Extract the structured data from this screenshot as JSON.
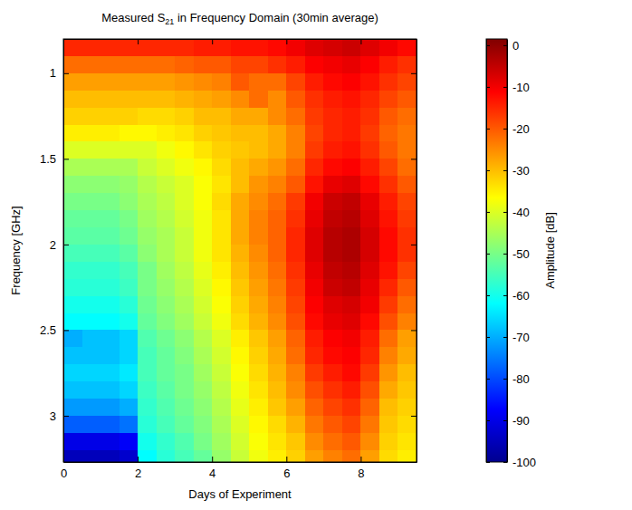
{
  "chart_data": {
    "type": "heatmap",
    "title": "Measured S21 in Frequency Domain (30min average)",
    "x_label": "Days of Experiment",
    "y_label": "Frequency [GHz]",
    "xlim": [
      0,
      9.5
    ],
    "ylim": [
      0.8,
      3.27
    ],
    "xticks": [
      0,
      2,
      4,
      6,
      8
    ],
    "yticks": [
      1,
      1.5,
      2,
      2.5,
      3
    ],
    "x_bins": [
      0,
      0.5,
      1,
      1.5,
      2,
      2.5,
      3,
      3.5,
      4,
      4.5,
      5,
      5.5,
      6,
      6.5,
      7,
      7.5,
      8,
      8.5,
      9,
      9.5
    ],
    "y_bins": [
      0.8,
      0.9,
      1.0,
      1.1,
      1.2,
      1.3,
      1.4,
      1.5,
      1.6,
      1.7,
      1.8,
      1.9,
      2.0,
      2.1,
      2.2,
      2.3,
      2.4,
      2.5,
      2.6,
      2.7,
      2.8,
      2.9,
      3.0,
      3.1,
      3.2,
      3.27
    ],
    "values": [
      [
        -15,
        -15,
        -15,
        -15,
        -15,
        -15,
        -15,
        -14,
        -14,
        -13,
        -13,
        -12,
        -10,
        -8,
        -7,
        -6,
        -8,
        -10,
        -12
      ],
      [
        -22,
        -22,
        -22,
        -22,
        -22,
        -22,
        -21,
        -20,
        -20,
        -18,
        -18,
        -16,
        -14,
        -11,
        -10,
        -9,
        -11,
        -14,
        -16
      ],
      [
        -27,
        -27,
        -27,
        -27,
        -27,
        -27,
        -26,
        -25,
        -24,
        -20,
        -22,
        -22,
        -18,
        -14,
        -12,
        -11,
        -13,
        -16,
        -18
      ],
      [
        -30,
        -30,
        -30,
        -30,
        -30,
        -30,
        -29,
        -28,
        -27,
        -25,
        -22,
        -25,
        -20,
        -16,
        -14,
        -13,
        -15,
        -18,
        -20
      ],
      [
        -32,
        -32,
        -32,
        -32,
        -33,
        -33,
        -32,
        -30,
        -30,
        -28,
        -28,
        -25,
        -22,
        -17,
        -15,
        -14,
        -16,
        -20,
        -22
      ],
      [
        -35,
        -35,
        -35,
        -36,
        -36,
        -35,
        -34,
        -32,
        -31,
        -30,
        -30,
        -28,
        -24,
        -18,
        -15,
        -14,
        -17,
        -21,
        -23
      ],
      [
        -40,
        -40,
        -40,
        -40,
        -40,
        -38,
        -36,
        -34,
        -32,
        -31,
        -30,
        -28,
        -24,
        -17,
        -14,
        -13,
        -16,
        -20,
        -23
      ],
      [
        -45,
        -45,
        -45,
        -45,
        -42,
        -40,
        -38,
        -36,
        -33,
        -30,
        -28,
        -26,
        -22,
        -15,
        -12,
        -11,
        -14,
        -18,
        -22
      ],
      [
        -48,
        -48,
        -48,
        -47,
        -44,
        -42,
        -40,
        -37,
        -34,
        -30,
        -26,
        -24,
        -20,
        -13,
        -9,
        -8,
        -12,
        -16,
        -20
      ],
      [
        -50,
        -50,
        -50,
        -48,
        -45,
        -43,
        -40,
        -37,
        -33,
        -28,
        -25,
        -22,
        -17,
        -10,
        -6,
        -5,
        -9,
        -14,
        -18
      ],
      [
        -52,
        -52,
        -52,
        -50,
        -46,
        -44,
        -41,
        -38,
        -34,
        -28,
        -24,
        -21,
        -16,
        -9,
        -5,
        -4,
        -8,
        -13,
        -17
      ],
      [
        -53,
        -53,
        -53,
        -51,
        -47,
        -45,
        -42,
        -38,
        -34,
        -28,
        -24,
        -21,
        -15,
        -8,
        -4,
        -3,
        -7,
        -12,
        -16
      ],
      [
        -55,
        -55,
        -55,
        -53,
        -48,
        -45,
        -42,
        -38,
        -34,
        -29,
        -25,
        -21,
        -15,
        -8,
        -4,
        -3,
        -7,
        -12,
        -16
      ],
      [
        -57,
        -57,
        -57,
        -55,
        -50,
        -46,
        -43,
        -39,
        -35,
        -30,
        -26,
        -22,
        -16,
        -9,
        -5,
        -4,
        -8,
        -13,
        -18
      ],
      [
        -58,
        -58,
        -58,
        -56,
        -50,
        -47,
        -44,
        -40,
        -36,
        -31,
        -27,
        -23,
        -17,
        -10,
        -6,
        -5,
        -9,
        -15,
        -20
      ],
      [
        -60,
        -60,
        -60,
        -58,
        -51,
        -48,
        -45,
        -41,
        -37,
        -32,
        -28,
        -24,
        -18,
        -11,
        -8,
        -7,
        -10,
        -17,
        -22
      ],
      [
        -62,
        -62,
        -62,
        -60,
        -52,
        -49,
        -46,
        -42,
        -38,
        -33,
        -29,
        -25,
        -19,
        -12,
        -9,
        -8,
        -12,
        -19,
        -24
      ],
      [
        -70,
        -68,
        -68,
        -66,
        -54,
        -51,
        -48,
        -44,
        -40,
        -35,
        -31,
        -27,
        -21,
        -14,
        -11,
        -10,
        -14,
        -22,
        -27
      ],
      [
        -68,
        -68,
        -68,
        -66,
        -55,
        -52,
        -49,
        -45,
        -41,
        -36,
        -32,
        -28,
        -22,
        -15,
        -12,
        -11,
        -15,
        -24,
        -28
      ],
      [
        -66,
        -66,
        -66,
        -64,
        -55,
        -52,
        -50,
        -46,
        -42,
        -37,
        -33,
        -29,
        -24,
        -17,
        -14,
        -12,
        -17,
        -26,
        -30
      ],
      [
        -68,
        -68,
        -68,
        -66,
        -56,
        -53,
        -50,
        -47,
        -43,
        -38,
        -34,
        -30,
        -25,
        -19,
        -16,
        -14,
        -19,
        -28,
        -31
      ],
      [
        -72,
        -72,
        -72,
        -70,
        -57,
        -54,
        -51,
        -48,
        -44,
        -39,
        -35,
        -31,
        -27,
        -21,
        -18,
        -16,
        -21,
        -30,
        -32
      ],
      [
        -78,
        -78,
        -78,
        -76,
        -58,
        -55,
        -52,
        -49,
        -45,
        -40,
        -36,
        -33,
        -29,
        -23,
        -20,
        -18,
        -23,
        -31,
        -33
      ],
      [
        -90,
        -90,
        -90,
        -88,
        -60,
        -57,
        -54,
        -50,
        -46,
        -41,
        -37,
        -34,
        -31,
        -25,
        -22,
        -20,
        -25,
        -32,
        -34
      ],
      [
        -95,
        -95,
        -95,
        -93,
        -62,
        -58,
        -55,
        -52,
        -47,
        -42,
        -38,
        -35,
        -32,
        -27,
        -24,
        -22,
        -27,
        -33,
        -35
      ]
    ],
    "colorbar": {
      "label": "Amplitude [dB]",
      "lim": [
        -100,
        1.5
      ],
      "ticks": [
        0,
        -10,
        -20,
        -30,
        -40,
        -50,
        -60,
        -70,
        -80,
        -90,
        -100
      ]
    }
  }
}
